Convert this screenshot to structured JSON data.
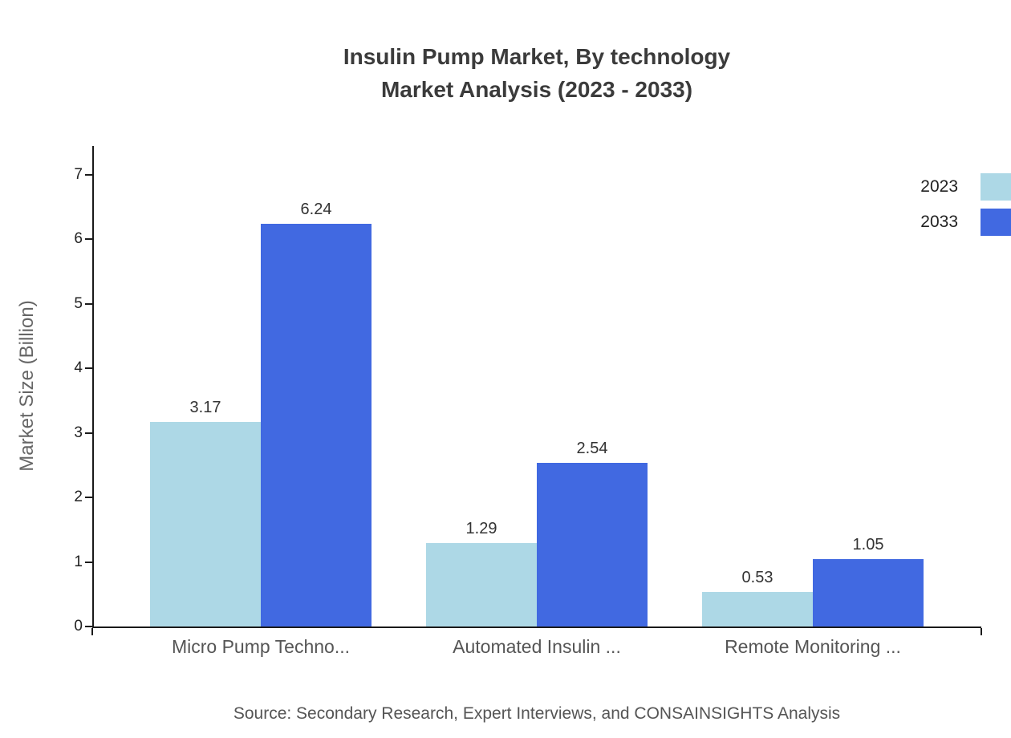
{
  "title": {
    "line1": "Insulin Pump Market, By technology",
    "line2": "Market Analysis (2023 - 2033)"
  },
  "chart_data": {
    "type": "bar",
    "categories": [
      "Micro Pump Techno...",
      "Automated Insulin ...",
      "Remote Monitoring ..."
    ],
    "series": [
      {
        "name": "2023",
        "color": "#ADD8E6",
        "values": [
          3.17,
          1.29,
          0.53
        ]
      },
      {
        "name": "2033",
        "color": "#4169E1",
        "values": [
          6.24,
          2.54,
          1.05
        ]
      }
    ],
    "value_labels": [
      [
        "3.17",
        "1.29",
        "0.53"
      ],
      [
        "6.24",
        "2.54",
        "1.05"
      ]
    ],
    "xlabel": "",
    "ylabel": "Market Size (Billion)",
    "ylim": [
      0,
      7
    ],
    "yticks": [
      0,
      1,
      2,
      3,
      4,
      5,
      6,
      7
    ],
    "legend_position": "top-right",
    "grid": false
  },
  "source": "Source: Secondary Research, Expert Interviews, and CONSAINSIGHTS Analysis"
}
